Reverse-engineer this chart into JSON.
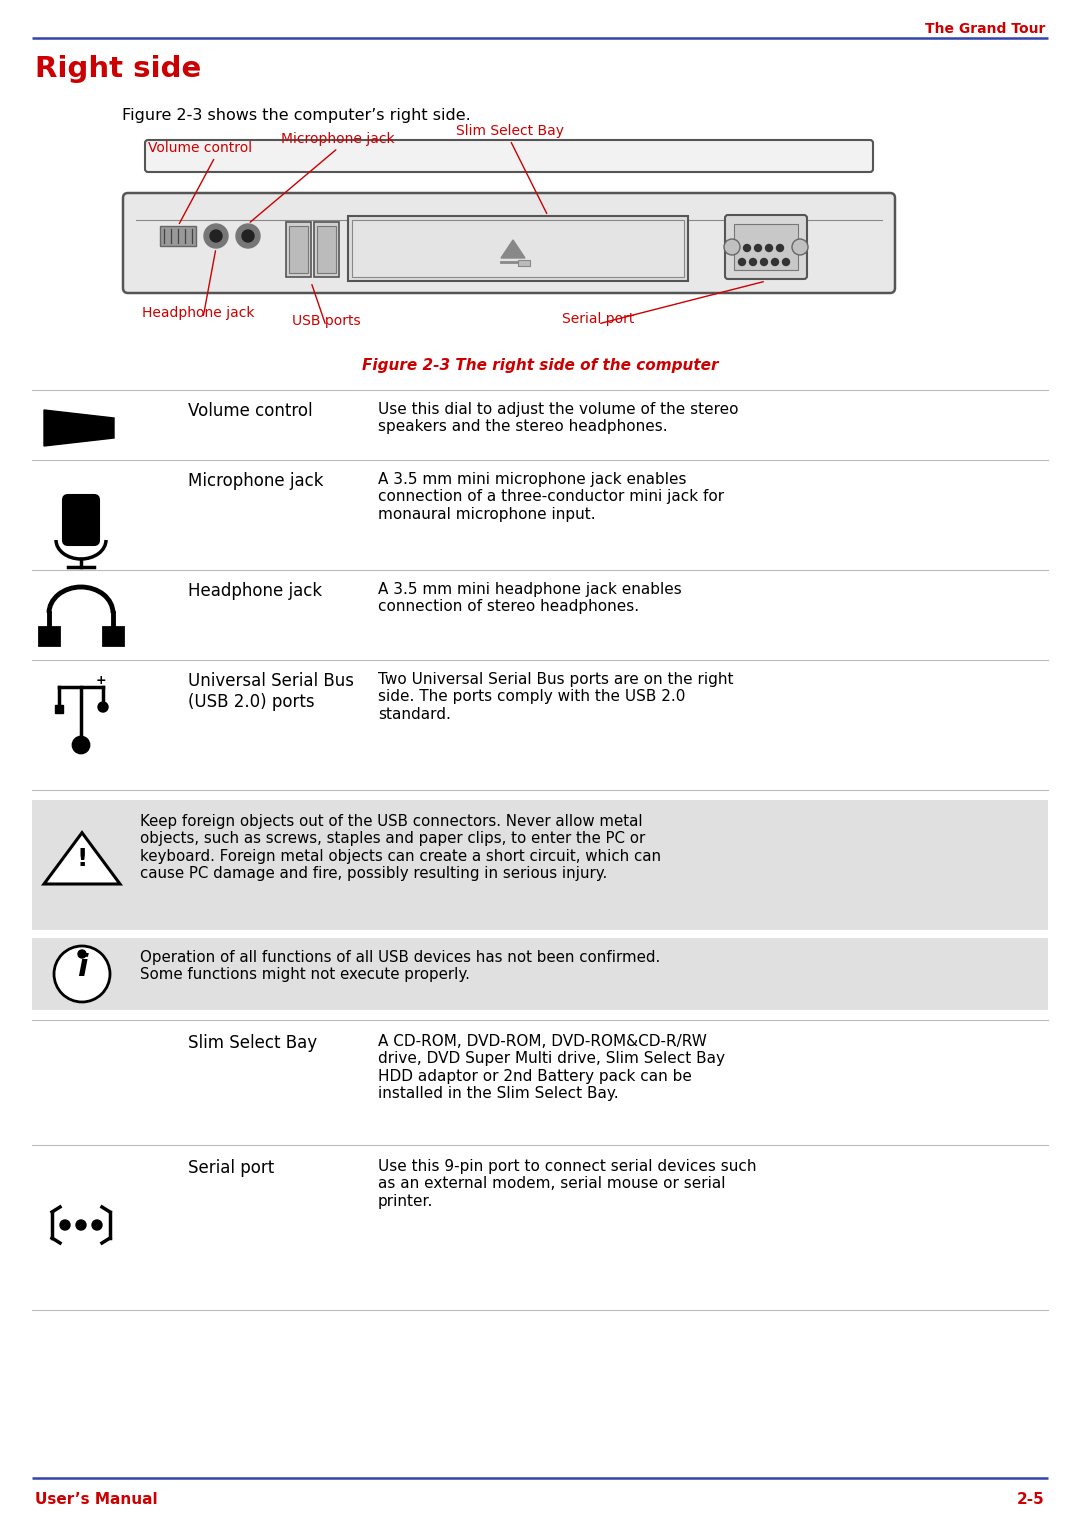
{
  "page_title": "The Grand Tour",
  "section_title": "Right side",
  "header_line_color": "#4455aa",
  "title_color": "#cc0000",
  "body_text_color": "#000000",
  "red_color": "#cc0000",
  "blue_color": "#3344aa",
  "figure_caption": "Figure 2-3 shows the computer’s right side.",
  "diagram_caption": "Figure 2-3 The right side of the computer",
  "footer_left": "User’s Manual",
  "footer_right": "2-5",
  "table_rows": [
    {
      "icon": "volume",
      "term": "Volume control",
      "desc": "Use this dial to adjust the volume of the stereo\nspeakers and the stereo headphones."
    },
    {
      "icon": "mic",
      "term": "Microphone jack",
      "desc": "A 3.5 mm mini microphone jack enables\nconnection of a three-conductor mini jack for\nmonaural microphone input."
    },
    {
      "icon": "headphone",
      "term": "Headphone jack",
      "desc": "A 3.5 mm mini headphone jack enables\nconnection of stereo headphones."
    },
    {
      "icon": "usb",
      "term": "Universal Serial Bus\n(USB 2.0) ports",
      "desc": "Two Universal Serial Bus ports are on the right\nside. The ports comply with the USB 2.0\nstandard."
    }
  ],
  "warning_text": "Keep foreign objects out of the USB connectors. Never allow metal\nobjects, such as screws, staples and paper clips, to enter the PC or\nkeyboard. Foreign metal objects can create a short circuit, which can\ncause PC damage and fire, possibly resulting in serious injury.",
  "info_text": "Operation of all functions of all USB devices has not been confirmed.\nSome functions might not execute properly.",
  "table_rows2": [
    {
      "icon": "none",
      "term": "Slim Select Bay",
      "desc": "A CD-ROM, DVD-ROM, DVD-ROM&CD-R/RW\ndrive, DVD Super Multi drive, Slim Select Bay\nHDD adaptor or 2nd Battery pack can be\ninstalled in the Slim Select Bay."
    },
    {
      "icon": "serial",
      "term": "Serial port",
      "desc": "Use this 9-pin port to connect serial devices such\nas an external modem, serial mouse or serial\nprinter."
    }
  ],
  "sep_color": "#bbbbbb",
  "warn_bg": "#e0e0e0",
  "info_bg": "#e0e0e0"
}
